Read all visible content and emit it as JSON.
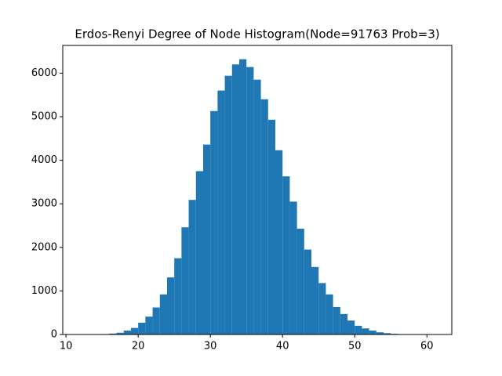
{
  "chart_data": {
    "type": "histogram",
    "title": "Erdos-Renyi Degree of Node Histogram(Node=91763 Prob=3)",
    "bins": [
      12,
      13,
      14,
      15,
      16,
      17,
      18,
      19,
      20,
      21,
      22,
      23,
      24,
      25,
      26,
      27,
      28,
      29,
      30,
      31,
      32,
      33,
      34,
      35,
      36,
      37,
      38,
      39,
      40,
      41,
      42,
      43,
      44,
      45,
      46,
      47,
      48,
      49,
      50,
      51,
      52,
      53,
      54,
      55,
      56,
      57,
      58,
      59,
      60,
      61
    ],
    "values": [
      1,
      2,
      5,
      10,
      20,
      40,
      90,
      150,
      270,
      410,
      620,
      920,
      1310,
      1750,
      2460,
      3090,
      3750,
      4360,
      5130,
      5600,
      5940,
      6200,
      6320,
      6140,
      5850,
      5400,
      4930,
      4230,
      3630,
      3050,
      2430,
      1950,
      1550,
      1180,
      920,
      630,
      470,
      320,
      200,
      140,
      90,
      50,
      30,
      15,
      8,
      4,
      2,
      1,
      1
    ],
    "color": "#1f77b4",
    "xlim": [
      9.55,
      63.45
    ],
    "xticks": [
      10,
      20,
      30,
      40,
      50,
      60
    ],
    "ylim": [
      0,
      6636
    ],
    "yticks": [
      0,
      1000,
      2000,
      3000,
      4000,
      5000,
      6000
    ],
    "grid": false
  }
}
